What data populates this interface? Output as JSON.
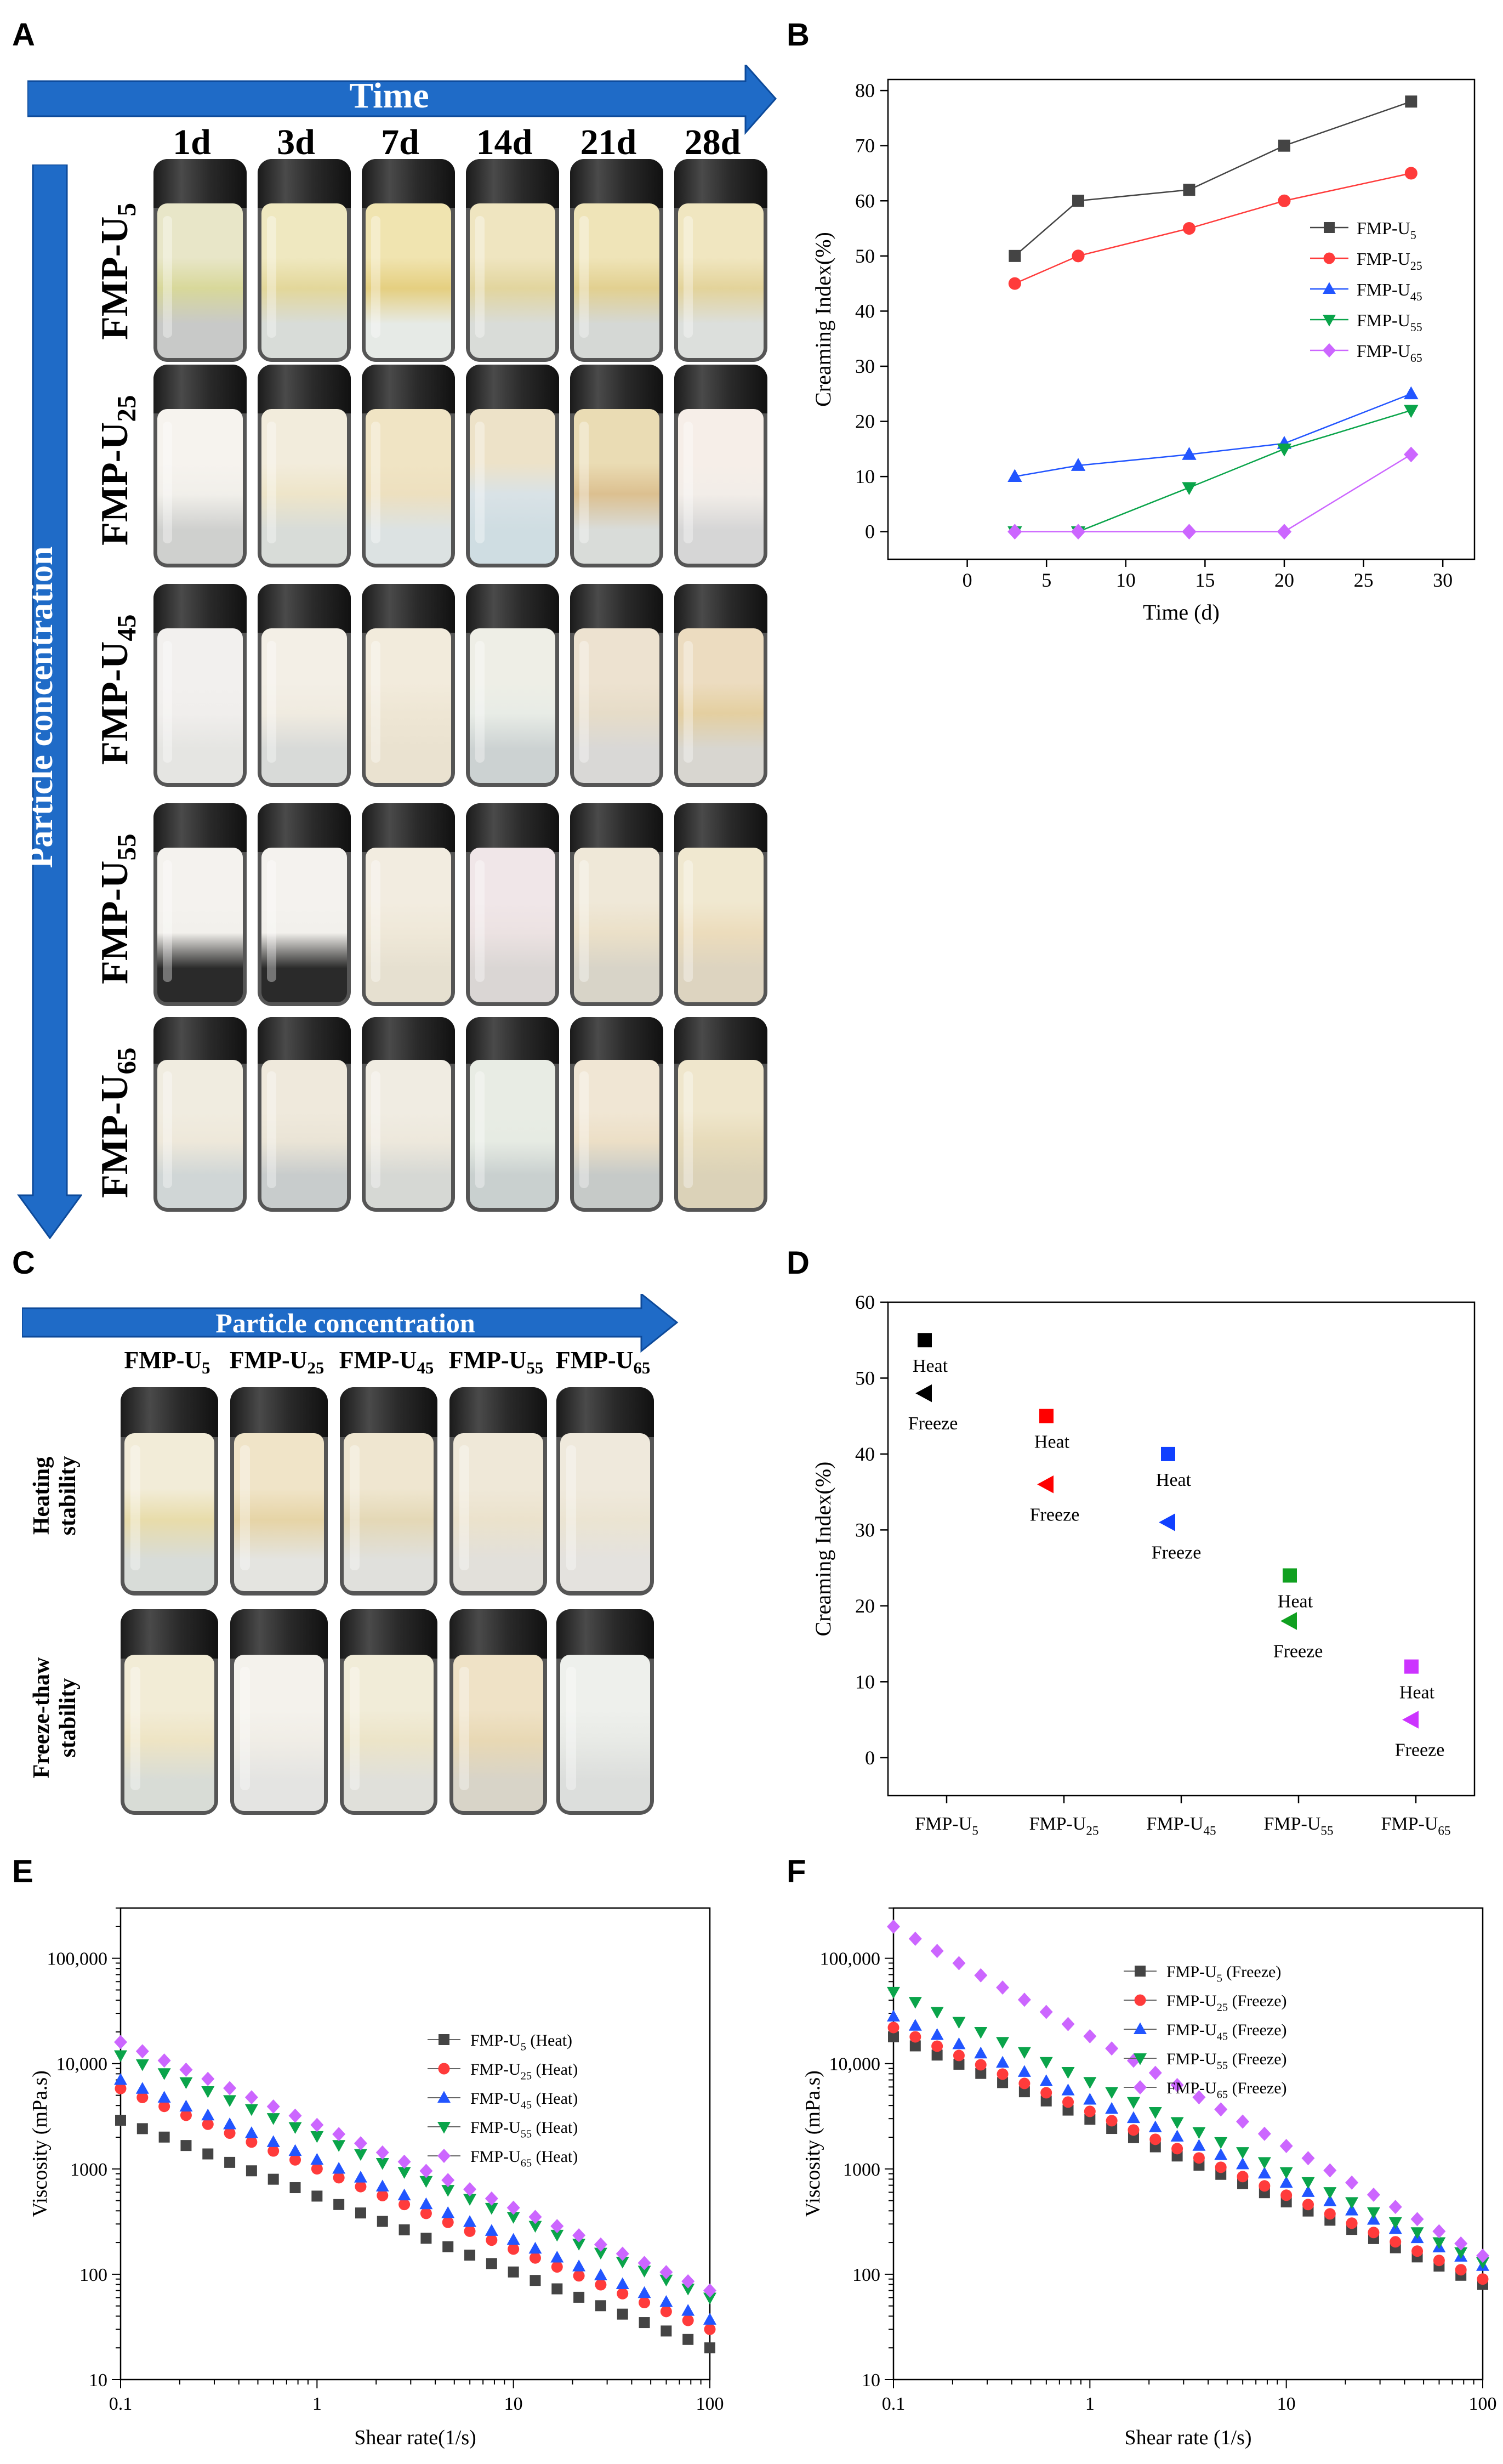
{
  "panels": {
    "a": "A",
    "b": "B",
    "c": "C",
    "d": "D",
    "e": "E",
    "f": "F"
  },
  "panel_a": {
    "time_arrow": "Time",
    "concentration_arrow": "Particle concentration",
    "columns": [
      "1d",
      "3d",
      "7d",
      "14d",
      "21d",
      "28d"
    ],
    "rows": [
      {
        "base": "FMP-U",
        "sub": "5"
      },
      {
        "base": "FMP-U",
        "sub": "25"
      },
      {
        "base": "FMP-U",
        "sub": "45"
      },
      {
        "base": "FMP-U",
        "sub": "55"
      },
      {
        "base": "FMP-U",
        "sub": "65"
      }
    ]
  },
  "panel_c": {
    "concentration_arrow": "Particle concentration",
    "columns": [
      {
        "base": "FMP-U",
        "sub": "5"
      },
      {
        "base": "FMP-U",
        "sub": "25"
      },
      {
        "base": "FMP-U",
        "sub": "45"
      },
      {
        "base": "FMP-U",
        "sub": "55"
      },
      {
        "base": "FMP-U",
        "sub": "65"
      }
    ],
    "rows": [
      {
        "line1": "Heating",
        "line2": "stability"
      },
      {
        "line1": "Freeze-thaw",
        "line2": "stability"
      }
    ]
  },
  "colors": {
    "arrow": "#1f6bc7",
    "black": "#444444",
    "red": "#ff3b3b",
    "blue": "#2255ff",
    "green": "#0aa44a",
    "purple": "#cc66ff",
    "d_black": "#000000",
    "d_red": "#ff0000",
    "d_blue": "#1040ff",
    "d_green": "#10a020",
    "d_purple": "#cc33ff"
  },
  "chart_data": [
    {
      "id": "B",
      "type": "line",
      "xlabel": "Time (d)",
      "ylabel": "Creaming Index(%)",
      "xlim": [
        -5,
        32
      ],
      "ylim": [
        -5,
        82
      ],
      "xticks": [
        0,
        5,
        10,
        15,
        20,
        25,
        30
      ],
      "yticks": [
        0,
        10,
        20,
        30,
        40,
        50,
        60,
        70,
        80
      ],
      "legend_position": "right",
      "series": [
        {
          "name": "FMP-U",
          "sub": "5",
          "marker": "square",
          "color": "#444444",
          "x": [
            3,
            7,
            14,
            20,
            28
          ],
          "values": [
            50,
            60,
            62,
            70,
            78
          ]
        },
        {
          "name": "FMP-U",
          "sub": "25",
          "marker": "circle",
          "color": "#ff3b3b",
          "x": [
            3,
            7,
            14,
            20,
            28
          ],
          "values": [
            45,
            50,
            55,
            60,
            65
          ]
        },
        {
          "name": "FMP-U",
          "sub": "45",
          "marker": "triangle-up",
          "color": "#2255ff",
          "x": [
            3,
            7,
            14,
            20,
            28
          ],
          "values": [
            10,
            12,
            14,
            16,
            25
          ]
        },
        {
          "name": "FMP-U",
          "sub": "55",
          "marker": "triangle-down",
          "color": "#0aa44a",
          "x": [
            3,
            7,
            14,
            20,
            28
          ],
          "values": [
            0,
            0,
            8,
            15,
            22
          ]
        },
        {
          "name": "FMP-U",
          "sub": "65",
          "marker": "diamond",
          "color": "#cc66ff",
          "x": [
            3,
            7,
            14,
            20,
            28
          ],
          "values": [
            0,
            0,
            0,
            0,
            14
          ]
        }
      ]
    },
    {
      "id": "D",
      "type": "scatter",
      "ylabel": "Creaming Index(%)",
      "ylim": [
        -5,
        60
      ],
      "yticks": [
        0,
        10,
        20,
        30,
        40,
        50,
        60
      ],
      "categories": [
        {
          "base": "FMP-U",
          "sub": "5"
        },
        {
          "base": "FMP-U",
          "sub": "25"
        },
        {
          "base": "FMP-U",
          "sub": "45"
        },
        {
          "base": "FMP-U",
          "sub": "55"
        },
        {
          "base": "FMP-U",
          "sub": "65"
        }
      ],
      "series": [
        {
          "name": "Heat",
          "marker": "square",
          "values": [
            55,
            45,
            40,
            24,
            12
          ]
        },
        {
          "name": "Freeze",
          "marker": "triangle-left",
          "values": [
            48,
            36,
            31,
            18,
            5
          ]
        }
      ],
      "point_colors": [
        "#000000",
        "#ff0000",
        "#1040ff",
        "#10a020",
        "#cc33ff"
      ],
      "annotation_labels": {
        "heat": "Heat",
        "freeze": "Freeze"
      }
    },
    {
      "id": "E",
      "type": "scatter",
      "xscale": "log",
      "yscale": "log",
      "xlabel": "Shear rate(1/s)",
      "ylabel": "Viscosity (mPa.s)",
      "xlim": [
        0.1,
        100
      ],
      "ylim": [
        10,
        300000
      ],
      "xtick_labels": [
        "0.1",
        "1",
        "10",
        "100"
      ],
      "ytick_labels": [
        "10",
        "100",
        "1000",
        "10,000",
        "100,000"
      ],
      "legend_position": "center-right",
      "series": [
        {
          "name": "FMP-U",
          "sub": "5",
          "suffix": "(Heat)",
          "marker": "square",
          "color": "#444444",
          "start": 2900,
          "end": 20
        },
        {
          "name": "FMP-U",
          "sub": "25",
          "suffix": "(Heat)",
          "marker": "circle",
          "color": "#ff3b3b",
          "start": 5800,
          "end": 30
        },
        {
          "name": "FMP-U",
          "sub": "45",
          "suffix": "(Heat)",
          "marker": "triangle-up",
          "color": "#2255ff",
          "start": 7000,
          "end": 37
        },
        {
          "name": "FMP-U",
          "sub": "55",
          "suffix": "(Heat)",
          "marker": "triangle-down",
          "color": "#0aa44a",
          "start": 12000,
          "end": 60
        },
        {
          "name": "FMP-U",
          "sub": "65",
          "suffix": "(Heat)",
          "marker": "diamond",
          "color": "#cc66ff",
          "start": 16000,
          "end": 70
        }
      ]
    },
    {
      "id": "F",
      "type": "scatter",
      "xscale": "log",
      "yscale": "log",
      "xlabel": "Shear rate (1/s)",
      "ylabel": "Viscosity (mPa.s)",
      "xlim": [
        0.1,
        100
      ],
      "ylim": [
        10,
        300000
      ],
      "xtick_labels": [
        "0.1",
        "1",
        "10",
        "100"
      ],
      "ytick_labels": [
        "10",
        "100",
        "1000",
        "10,000",
        "100,000"
      ],
      "legend_position": "top-right",
      "series": [
        {
          "name": "FMP-U",
          "sub": "5",
          "suffix": "(Freeze)",
          "marker": "square",
          "color": "#444444",
          "start": 18000,
          "end": 80
        },
        {
          "name": "FMP-U",
          "sub": "25",
          "suffix": "(Freeze)",
          "marker": "circle",
          "color": "#ff3b3b",
          "start": 22000,
          "end": 90
        },
        {
          "name": "FMP-U",
          "sub": "45",
          "suffix": "(Freeze)",
          "marker": "triangle-up",
          "color": "#2255ff",
          "start": 28000,
          "end": 120
        },
        {
          "name": "FMP-U",
          "sub": "55",
          "suffix": "(Freeze)",
          "marker": "triangle-down",
          "color": "#0aa44a",
          "start": 48000,
          "end": 130
        },
        {
          "name": "FMP-U",
          "sub": "65",
          "suffix": "(Freeze)",
          "marker": "diamond",
          "color": "#cc66ff",
          "start": 200000,
          "end": 150
        }
      ]
    }
  ]
}
